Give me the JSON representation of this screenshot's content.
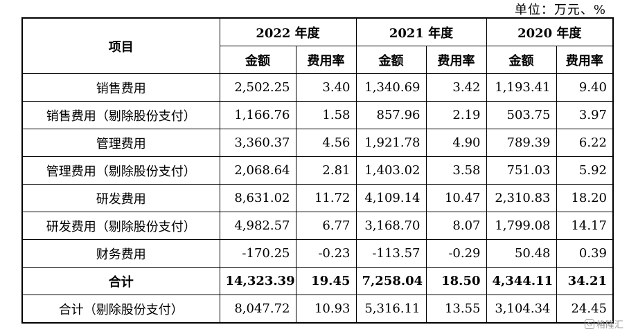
{
  "unit": "单位：万元、%",
  "header": {
    "item": "项目",
    "years": [
      "2022 年度",
      "2021 年度",
      "2020 年度"
    ],
    "amount": "金额",
    "rate": "费用率"
  },
  "rows": [
    {
      "label": "销售费用",
      "values": [
        "2,502.25",
        "3.40",
        "1,340.69",
        "3.42",
        "1,193.41",
        "9.40"
      ],
      "bold": false
    },
    {
      "label": "销售费用（剔除股份支付）",
      "values": [
        "1,166.76",
        "1.58",
        "857.96",
        "2.19",
        "503.75",
        "3.97"
      ],
      "bold": false
    },
    {
      "label": "管理费用",
      "values": [
        "3,360.37",
        "4.56",
        "1,921.78",
        "4.90",
        "789.39",
        "6.22"
      ],
      "bold": false
    },
    {
      "label": "管理费用（剔除股份支付）",
      "values": [
        "2,068.64",
        "2.81",
        "1,403.02",
        "3.58",
        "751.03",
        "5.92"
      ],
      "bold": false
    },
    {
      "label": "研发费用",
      "values": [
        "8,631.02",
        "11.72",
        "4,109.14",
        "10.47",
        "2,310.83",
        "18.20"
      ],
      "bold": false
    },
    {
      "label": "研发费用（剔除股份支付）",
      "values": [
        "4,982.57",
        "6.77",
        "3,168.70",
        "8.07",
        "1,799.08",
        "14.17"
      ],
      "bold": false
    },
    {
      "label": "财务费用",
      "values": [
        "-170.25",
        "-0.23",
        "-113.57",
        "-0.29",
        "50.48",
        "0.39"
      ],
      "bold": false
    },
    {
      "label": "合计",
      "values": [
        "14,323.39",
        "19.45",
        "7,258.04",
        "18.50",
        "4,344.11",
        "34.21"
      ],
      "bold": true
    },
    {
      "label": "合计（剔除股份支付）",
      "values": [
        "8,047.72",
        "10.93",
        "5,316.11",
        "13.55",
        "3,104.34",
        "24.45"
      ],
      "bold": false
    }
  ],
  "watermark": {
    "logo": "G",
    "text": "格隆汇"
  }
}
